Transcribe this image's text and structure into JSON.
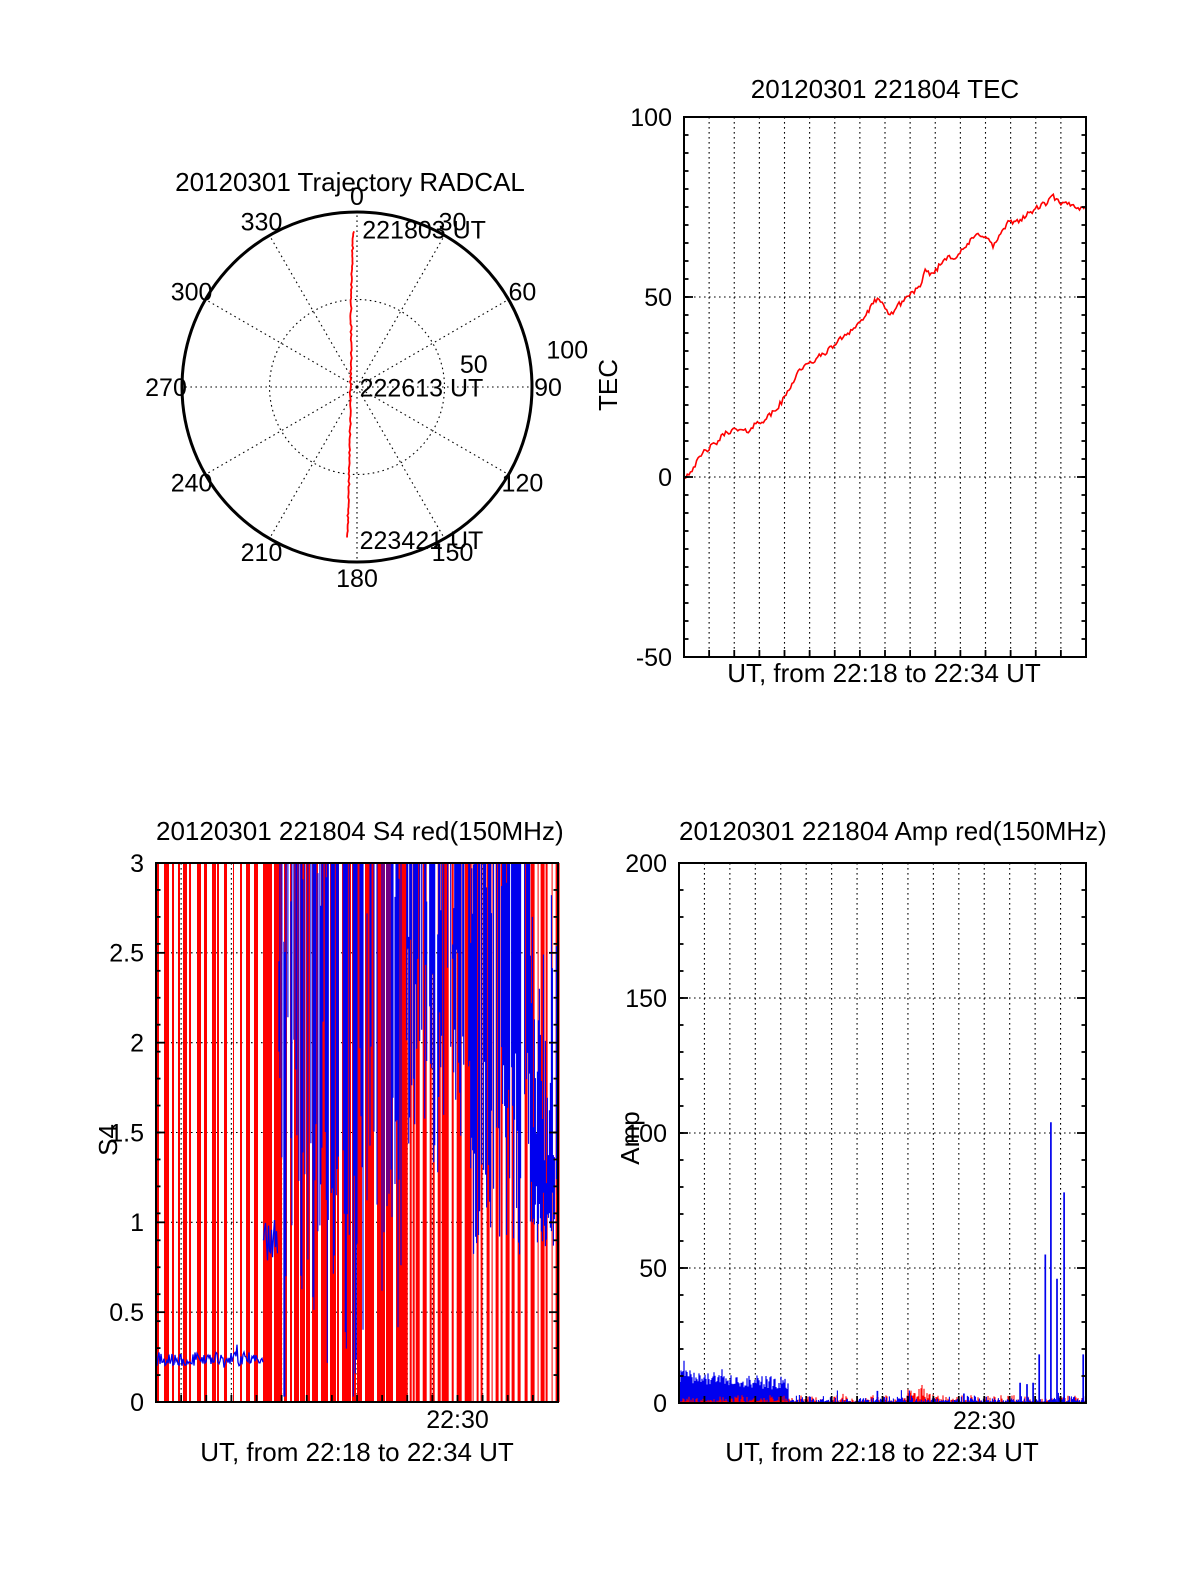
{
  "figure": {
    "background": "#ffffff",
    "text_color": "#000000"
  },
  "colors": {
    "red": "#ff0000",
    "blue": "#0000ee",
    "black": "#000000"
  },
  "chart_data": [
    {
      "id": "trajectory",
      "type": "line",
      "subtype": "polar-trajectory",
      "title": "20120301 Trajectory RADCAL",
      "rmax": 100,
      "radial_grid": [
        50,
        100
      ],
      "azimuth_labels": [
        0,
        30,
        60,
        90,
        120,
        150,
        180,
        210,
        240,
        270,
        300,
        330
      ],
      "radial_tick_labels": [
        {
          "text": "50",
          "az_deg": 79,
          "r": 68
        },
        {
          "text": "100",
          "az_deg": 80,
          "r": 122
        }
      ],
      "annotations": [
        {
          "text": "221803 UT",
          "x": 3,
          "y": 90
        },
        {
          "text": "222613 UT",
          "x": 1.5,
          "y": -0.5
        },
        {
          "text": "223421 UT",
          "x": 1.5,
          "y": -87.5
        }
      ],
      "line_color": "#ff0000",
      "trajectory_points_xy": [
        [
          -2.0,
          89
        ],
        [
          -2.6,
          78
        ],
        [
          -3.0,
          66
        ],
        [
          -3.3,
          54
        ],
        [
          -3.5,
          42
        ],
        [
          -3.4,
          30
        ],
        [
          -3.2,
          18
        ],
        [
          -3.6,
          6
        ],
        [
          -3.9,
          -6
        ],
        [
          -3.8,
          -18
        ],
        [
          -4.1,
          -30
        ],
        [
          -4.3,
          -42
        ],
        [
          -4.6,
          -54
        ],
        [
          -5.0,
          -66
        ],
        [
          -5.2,
          -76
        ],
        [
          -5.7,
          -86
        ]
      ]
    },
    {
      "id": "tec",
      "type": "line",
      "title": "20120301 221804 TEC",
      "ylabel": "TEC",
      "xlabel": "UT, from 22:18 to 22:34 UT",
      "x_start": "22:18",
      "x_end": "22:34",
      "xlim_minutes": [
        0,
        16
      ],
      "ylim": [
        -50,
        100
      ],
      "yticks": [
        -50,
        0,
        50,
        100
      ],
      "ygrid": [
        0,
        50
      ],
      "yminor": 5,
      "xgrid_every_minutes": 1,
      "xticks": [],
      "series": [
        {
          "name": "TEC",
          "color": "#ff0000",
          "points": [
            [
              0,
              0
            ],
            [
              0.2,
              1
            ],
            [
              0.5,
              4
            ],
            [
              0.8,
              7
            ],
            [
              1.0,
              8
            ],
            [
              1.3,
              9.5
            ],
            [
              1.6,
              12
            ],
            [
              1.9,
              13
            ],
            [
              2.2,
              13
            ],
            [
              2.5,
              12.5
            ],
            [
              2.8,
              14.5
            ],
            [
              3.1,
              15.5
            ],
            [
              3.4,
              17
            ],
            [
              3.7,
              19
            ],
            [
              4.0,
              22
            ],
            [
              4.3,
              26
            ],
            [
              4.6,
              30
            ],
            [
              4.9,
              31
            ],
            [
              5.2,
              32.5
            ],
            [
              5.5,
              34
            ],
            [
              5.8,
              35.5
            ],
            [
              6.1,
              37.5
            ],
            [
              6.4,
              39.5
            ],
            [
              6.7,
              41
            ],
            [
              7.0,
              43
            ],
            [
              7.3,
              45.5
            ],
            [
              7.7,
              50
            ],
            [
              8.0,
              46.5
            ],
            [
              8.2,
              45
            ],
            [
              8.5,
              47.5
            ],
            [
              8.8,
              49.5
            ],
            [
              9.1,
              51.5
            ],
            [
              9.4,
              52.5
            ],
            [
              9.6,
              57
            ],
            [
              9.9,
              56.5
            ],
            [
              10.2,
              59
            ],
            [
              10.5,
              61.5
            ],
            [
              10.8,
              61
            ],
            [
              11.1,
              63
            ],
            [
              11.4,
              65.5
            ],
            [
              11.7,
              67.5
            ],
            [
              12.0,
              67
            ],
            [
              12.3,
              64
            ],
            [
              12.6,
              67.5
            ],
            [
              12.9,
              70.5
            ],
            [
              13.2,
              71
            ],
            [
              13.5,
              72
            ],
            [
              13.8,
              73.5
            ],
            [
              14.1,
              75
            ],
            [
              14.4,
              76
            ],
            [
              14.7,
              78
            ],
            [
              15.0,
              75.5
            ],
            [
              15.2,
              76
            ],
            [
              15.5,
              75.5
            ],
            [
              15.8,
              74.5
            ],
            [
              16,
              75
            ]
          ]
        }
      ]
    },
    {
      "id": "s4",
      "type": "line",
      "subtype": "scintillation-noise",
      "title": "20120301 221804 S4 red(150MHz)",
      "ylabel": "S4",
      "xlabel": "UT, from 22:18 to 22:34 UT",
      "x_start": "22:18",
      "x_end": "22:34",
      "xlim_minutes": [
        0,
        16
      ],
      "ylim": [
        0,
        3
      ],
      "yticks": [
        0,
        0.5,
        1,
        1.5,
        2,
        2.5,
        3
      ],
      "ygrid": [
        0.5,
        1,
        1.5,
        2,
        2.5
      ],
      "yminor": 0.15,
      "xgrid_every_minutes": 1,
      "xticks": [
        {
          "minutes": 12,
          "label": "22:30"
        }
      ],
      "red_saturated_stripes": {
        "color": "#ff0000",
        "value_min": 0,
        "value_max": 3,
        "segments": [
          {
            "t0": 0,
            "t1": 4.3,
            "run_red": [
              1,
              5
            ],
            "run_gap": [
              1,
              6
            ]
          },
          {
            "t0": 4.3,
            "t1": 9.9,
            "run_red": [
              2,
              9
            ],
            "run_gap": [
              1,
              3
            ]
          },
          {
            "t0": 9.9,
            "t1": 12.6,
            "run_red": [
              2,
              7
            ],
            "run_gap": [
              1,
              3
            ]
          },
          {
            "t0": 12.6,
            "t1": 16,
            "run_red": [
              1,
              4
            ],
            "run_gap": [
              1,
              4
            ]
          }
        ]
      },
      "blue_trace_segments": [
        {
          "t0": 0,
          "t1": 4.28,
          "mean": 0.24,
          "noise": 0.04
        },
        {
          "t0": 4.28,
          "t1": 4.85,
          "mean": 0.9,
          "noise": 0.12
        }
      ],
      "blue_noise_segments": [
        {
          "t0": 4.85,
          "t1": 6.7,
          "p": 0.6,
          "top_min": 2.4,
          "bot_min": 0.5,
          "bot_max": 2.2,
          "dip_p": 0.03
        },
        {
          "t0": 6.7,
          "t1": 8.0,
          "p": 0.65,
          "top_min": 2.6,
          "bot_min": 0.15,
          "bot_max": 1.6,
          "dip_p": 0.05
        },
        {
          "t0": 8.0,
          "t1": 9.9,
          "p": 0.6,
          "top_min": 2.5,
          "bot_min": 0.4,
          "bot_max": 2.0,
          "dip_p": 0.04
        },
        {
          "t0": 9.9,
          "t1": 12.6,
          "p": 0.55,
          "top_min": 2.5,
          "bot_min": 1.2,
          "bot_max": 2.6,
          "dip_p": 0.02
        },
        {
          "t0": 12.6,
          "t1": 14.9,
          "p": 0.85,
          "top_min": 2.7,
          "bot_min": 0.8,
          "bot_max": 2.0,
          "dip_p": 0.02
        },
        {
          "t0": 14.9,
          "t1": 16,
          "p": 0.95,
          "band": true,
          "bot_min": 0.85,
          "bot_max": 1.25,
          "top_extra_max": 2.0
        }
      ]
    },
    {
      "id": "amp",
      "type": "line",
      "subtype": "amplitude-noise",
      "title": "20120301 221804 Amp red(150MHz)",
      "ylabel": "Amp",
      "xlabel": "UT, from 22:18 to 22:34 UT",
      "x_start": "22:18",
      "x_end": "22:34",
      "xlim_minutes": [
        0,
        16
      ],
      "ylim": [
        0,
        200
      ],
      "yticks": [
        0,
        50,
        100,
        150,
        200
      ],
      "ygrid": [
        50,
        100,
        150
      ],
      "yminor": 10,
      "xgrid_every_minutes": 1,
      "xticks": [
        {
          "minutes": 12,
          "label": "22:30"
        }
      ],
      "blue_band": {
        "t0": 0,
        "t1": 4.3,
        "base_start": 12.5,
        "base_end": 9.5,
        "spread": 5,
        "spike_p": 0.04,
        "spike_extra": 6
      },
      "blue_floor": {
        "t0": 4.3,
        "t1": 16,
        "max": 2.8,
        "tall_p": 0.02,
        "tall_max": 4
      },
      "red_floor": {
        "max": 2.8,
        "bump": {
          "t0": 8.9,
          "t1": 10.1,
          "max": 7
        }
      },
      "blue_spikes": [
        {
          "minutes": 7.8,
          "height": 4.5
        },
        {
          "minutes": 11.2,
          "height": 3.5
        },
        {
          "minutes": 13.41,
          "height": 7.5
        },
        {
          "minutes": 13.68,
          "height": 7
        },
        {
          "minutes": 13.92,
          "height": 7.5
        },
        {
          "minutes": 14.16,
          "height": 18
        },
        {
          "minutes": 14.4,
          "height": 55
        },
        {
          "minutes": 14.62,
          "height": 104
        },
        {
          "minutes": 14.86,
          "height": 46
        },
        {
          "minutes": 15.14,
          "height": 78
        },
        {
          "minutes": 15.89,
          "height": 18
        }
      ]
    }
  ]
}
